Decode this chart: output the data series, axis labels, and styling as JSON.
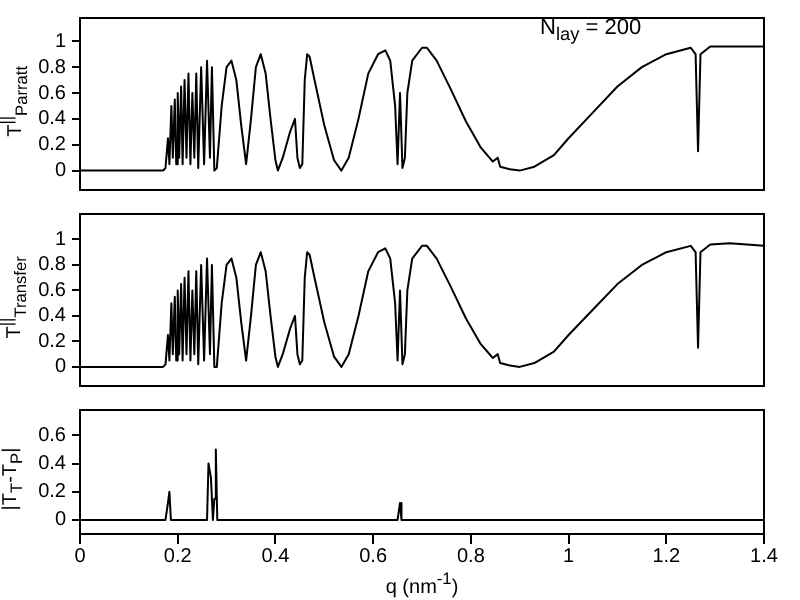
{
  "chart_data": [
    {
      "type": "line",
      "ylabel": "T$^{||}$$_{Parratt}$",
      "annotations": [
        "N$_{lay}$ = 200"
      ],
      "xlim": [
        0,
        1.4
      ],
      "ylim": [
        -0.15,
        1.18
      ],
      "yticks": [
        0,
        0.2,
        0.4,
        0.6,
        0.8,
        1
      ],
      "tick_labels": "y",
      "marker": "none",
      "line_style": "solid",
      "series": [
        {
          "color": "#000000",
          "x": [
            0,
            0.17,
            0.175,
            0.18,
            0.183,
            0.187,
            0.19,
            0.194,
            0.197,
            0.2,
            0.203,
            0.207,
            0.21,
            0.214,
            0.218,
            0.222,
            0.226,
            0.23,
            0.234,
            0.238,
            0.242,
            0.248,
            0.254,
            0.26,
            0.266,
            0.27,
            0.275,
            0.28,
            0.29,
            0.3,
            0.31,
            0.32,
            0.33,
            0.34,
            0.35,
            0.36,
            0.37,
            0.38,
            0.39,
            0.4,
            0.405,
            0.415,
            0.43,
            0.44,
            0.445,
            0.45,
            0.455,
            0.46,
            0.465,
            0.47,
            0.48,
            0.5,
            0.52,
            0.535,
            0.55,
            0.57,
            0.59,
            0.61,
            0.625,
            0.635,
            0.645,
            0.65,
            0.655,
            0.66,
            0.665,
            0.67,
            0.68,
            0.7,
            0.71,
            0.73,
            0.76,
            0.79,
            0.82,
            0.845,
            0.855,
            0.86,
            0.88,
            0.9,
            0.93,
            0.97,
            1.0,
            1.05,
            1.1,
            1.15,
            1.2,
            1.25,
            1.26,
            1.265,
            1.27,
            1.29,
            1.35,
            1.4
          ],
          "values": [
            0,
            0,
            0.02,
            0.25,
            0.05,
            0.5,
            0.1,
            0.55,
            0.05,
            0.6,
            0.1,
            0.65,
            0.05,
            0.7,
            0.1,
            0.75,
            0.05,
            0.6,
            0.1,
            0.75,
            0.02,
            0.8,
            0.05,
            0.85,
            0.1,
            0.8,
            0,
            0.02,
            0.5,
            0.8,
            0.85,
            0.7,
            0.35,
            0.05,
            0.4,
            0.8,
            0.9,
            0.75,
            0.4,
            0.08,
            0,
            0.1,
            0.3,
            0.4,
            0.1,
            0.02,
            0.05,
            0.7,
            0.9,
            0.88,
            0.7,
            0.35,
            0.08,
            0,
            0.1,
            0.4,
            0.75,
            0.9,
            0.93,
            0.85,
            0.5,
            0.05,
            0.6,
            0.02,
            0.1,
            0.6,
            0.85,
            0.95,
            0.95,
            0.85,
            0.62,
            0.38,
            0.18,
            0.07,
            0.1,
            0.03,
            0.01,
            0,
            0.03,
            0.12,
            0.25,
            0.45,
            0.65,
            0.8,
            0.9,
            0.95,
            0.9,
            0.15,
            0.9,
            0.96,
            0.96,
            0.96
          ]
        }
      ]
    },
    {
      "type": "line",
      "ylabel": "T$^{||}$$_{Transfer}$",
      "xlim": [
        0,
        1.4
      ],
      "ylim": [
        -0.15,
        1.2
      ],
      "yticks": [
        0,
        0.2,
        0.4,
        0.6,
        0.8,
        1
      ],
      "tick_labels": "y",
      "marker": "none",
      "line_style": "solid",
      "series": [
        {
          "color": "#000000",
          "x": [
            0,
            0.17,
            0.175,
            0.18,
            0.183,
            0.187,
            0.19,
            0.194,
            0.197,
            0.2,
            0.203,
            0.207,
            0.21,
            0.214,
            0.218,
            0.222,
            0.226,
            0.23,
            0.234,
            0.238,
            0.242,
            0.248,
            0.254,
            0.26,
            0.266,
            0.27,
            0.275,
            0.28,
            0.29,
            0.3,
            0.31,
            0.32,
            0.33,
            0.34,
            0.35,
            0.36,
            0.37,
            0.38,
            0.39,
            0.4,
            0.405,
            0.415,
            0.43,
            0.44,
            0.445,
            0.45,
            0.455,
            0.46,
            0.465,
            0.47,
            0.48,
            0.5,
            0.52,
            0.535,
            0.55,
            0.57,
            0.59,
            0.61,
            0.625,
            0.635,
            0.645,
            0.65,
            0.655,
            0.66,
            0.665,
            0.67,
            0.68,
            0.7,
            0.71,
            0.73,
            0.76,
            0.79,
            0.82,
            0.845,
            0.855,
            0.86,
            0.88,
            0.9,
            0.93,
            0.97,
            1.0,
            1.05,
            1.1,
            1.15,
            1.2,
            1.25,
            1.26,
            1.265,
            1.27,
            1.29,
            1.33,
            1.4
          ],
          "values": [
            0,
            0,
            0.02,
            0.25,
            0.05,
            0.5,
            0.1,
            0.55,
            0.05,
            0.6,
            0.1,
            0.65,
            0.05,
            0.7,
            0.1,
            0.75,
            0.05,
            0.6,
            0.1,
            0.75,
            0.02,
            0.8,
            0.05,
            0.85,
            0.1,
            0.8,
            0,
            0,
            0.5,
            0.8,
            0.85,
            0.7,
            0.35,
            0.05,
            0.4,
            0.8,
            0.9,
            0.75,
            0.4,
            0.08,
            0,
            0.1,
            0.3,
            0.4,
            0.1,
            0.02,
            0.05,
            0.7,
            0.9,
            0.88,
            0.7,
            0.35,
            0.08,
            0,
            0.1,
            0.4,
            0.75,
            0.9,
            0.93,
            0.85,
            0.5,
            0.05,
            0.6,
            0.02,
            0.1,
            0.6,
            0.85,
            0.95,
            0.95,
            0.85,
            0.62,
            0.38,
            0.18,
            0.07,
            0.1,
            0.03,
            0.01,
            0,
            0.03,
            0.12,
            0.25,
            0.45,
            0.65,
            0.8,
            0.9,
            0.95,
            0.9,
            0.15,
            0.9,
            0.96,
            0.97,
            0.95
          ]
        }
      ]
    },
    {
      "type": "line",
      "ylabel": "|T$_{T}$-T$_{P}$|",
      "xlabel": "q (nm$^{-1}$)",
      "xlim": [
        0,
        1.4
      ],
      "ylim": [
        -0.1,
        0.78
      ],
      "xticks": [
        0,
        0.2,
        0.4,
        0.6,
        0.8,
        1,
        1.2,
        1.4
      ],
      "yticks": [
        0,
        0.2,
        0.4,
        0.6
      ],
      "marker": "none",
      "line_style": "solid",
      "series": [
        {
          "color": "#000000",
          "x": [
            0,
            0.175,
            0.18,
            0.183,
            0.186,
            0.26,
            0.263,
            0.268,
            0.272,
            0.275,
            0.278,
            0.281,
            0.65,
            0.655,
            0.658,
            1.4
          ],
          "values": [
            0,
            0,
            0.12,
            0.2,
            0,
            0,
            0.4,
            0.3,
            0,
            0.15,
            0.5,
            0,
            0,
            0.12,
            0,
            0
          ]
        }
      ]
    }
  ]
}
